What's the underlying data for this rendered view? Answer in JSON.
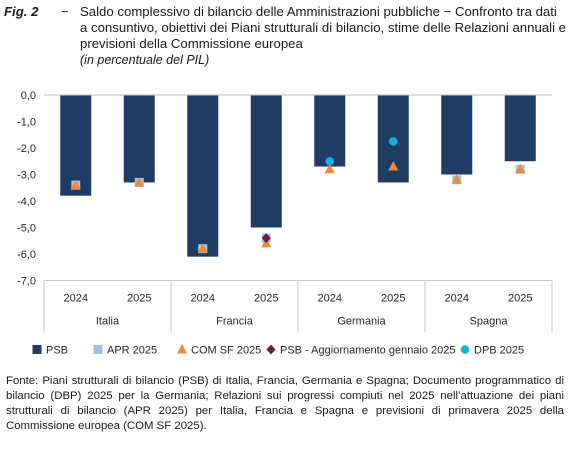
{
  "caption": {
    "fig_label": "Fig. 2",
    "dash": "−",
    "title": "Saldo complessivo di bilancio delle Amministrazioni pubbliche − Confronto tra dati a consuntivo, obiettivi dei Piani strutturali di bilancio, stime delle Relazioni annuali e previsioni della Commissione europea",
    "subtitle": "(in percentuale del PIL)"
  },
  "chart_data": {
    "type": "bar",
    "ylim": [
      -7.0,
      0.0
    ],
    "yticks": [
      "0,0",
      "-1,0",
      "-2,0",
      "-3,0",
      "-4,0",
      "-5,0",
      "-6,0",
      "-7,0"
    ],
    "grid": false,
    "legend_position": "bottom",
    "categories": [
      "2024",
      "2025",
      "2024",
      "2025",
      "2024",
      "2025",
      "2024",
      "2025"
    ],
    "groups": [
      {
        "label": "Italia",
        "span": [
          0,
          1
        ]
      },
      {
        "label": "Francia",
        "span": [
          2,
          3
        ]
      },
      {
        "label": "Germania",
        "span": [
          4,
          5
        ]
      },
      {
        "label": "Spagna",
        "span": [
          6,
          7
        ]
      }
    ],
    "series": [
      {
        "name": "PSB",
        "kind": "bar",
        "marker": "square",
        "color": "#1f3c64",
        "values": [
          -3.8,
          -3.3,
          -6.1,
          -5.0,
          -2.7,
          -3.3,
          -3.0,
          -2.5
        ]
      },
      {
        "name": "APR 2025",
        "kind": "marker",
        "marker": "square",
        "color": "#9ec3e6",
        "values": [
          -3.4,
          -3.3,
          -5.8,
          -5.4,
          null,
          null,
          -3.2,
          -2.8
        ]
      },
      {
        "name": "COM SF 2025",
        "kind": "marker",
        "marker": "triangle",
        "color": "#ee8a36",
        "values": [
          -3.4,
          -3.3,
          -5.8,
          -5.6,
          -2.8,
          -2.7,
          -3.2,
          -2.8
        ]
      },
      {
        "name": "PSB - Aggiornamento gennaio 2025",
        "kind": "marker",
        "marker": "diamond",
        "color": "#7a1a3c",
        "values": [
          null,
          null,
          null,
          -5.4,
          null,
          null,
          null,
          null
        ]
      },
      {
        "name": "DPB 2025",
        "kind": "marker",
        "marker": "circle",
        "color": "#12b0ea",
        "values": [
          null,
          null,
          null,
          null,
          -2.5,
          -1.75,
          null,
          null
        ]
      }
    ]
  },
  "source": "Fonte: Piani strutturali di bilancio (PSB) di Italia, Francia, Germania e Spagna; Documento programmatico di bilancio (DBP) 2025 per la Germania; Relazioni sui progressi compiuti nel 2025 nell’attuazione dei piani strutturali di bilancio (APR 2025) per Italia, Francia e Spagna e previsioni di primavera 2025 della Commissione europea (COM SF 2025)."
}
